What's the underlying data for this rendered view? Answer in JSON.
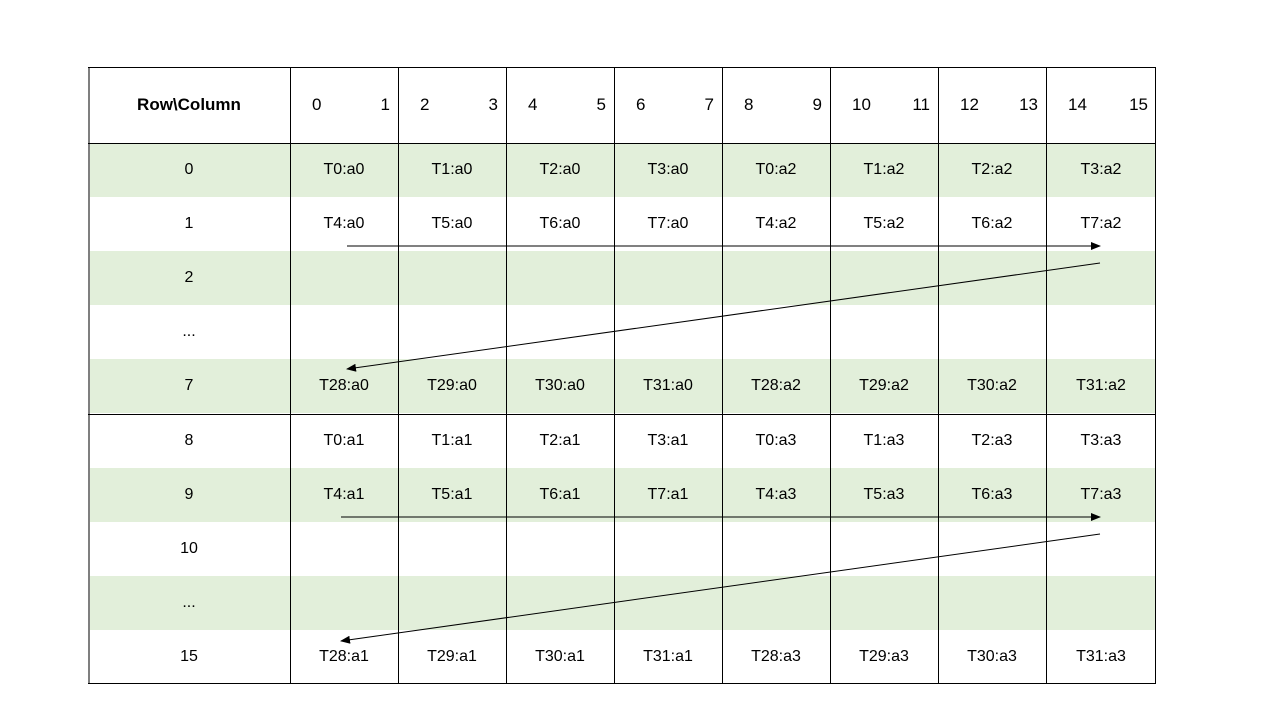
{
  "table": {
    "corner_label": "Row\\Column",
    "column_headers": [
      [
        "0",
        "1"
      ],
      [
        "2",
        "3"
      ],
      [
        "4",
        "5"
      ],
      [
        "6",
        "7"
      ],
      [
        "8",
        "9"
      ],
      [
        "10",
        "11"
      ],
      [
        "12",
        "13"
      ],
      [
        "14",
        "15"
      ]
    ],
    "rows": [
      {
        "label": "0",
        "shaded": true,
        "cells": [
          "T0:a0",
          "T1:a0",
          "T2:a0",
          "T3:a0",
          "T0:a2",
          "T1:a2",
          "T2:a2",
          "T3:a2"
        ]
      },
      {
        "label": "1",
        "shaded": false,
        "cells": [
          "T4:a0",
          "T5:a0",
          "T6:a0",
          "T7:a0",
          "T4:a2",
          "T5:a2",
          "T6:a2",
          "T7:a2"
        ]
      },
      {
        "label": "2",
        "shaded": true,
        "cells": [
          "",
          "",
          "",
          "",
          "",
          "",
          "",
          ""
        ]
      },
      {
        "label": "...",
        "shaded": false,
        "cells": [
          "",
          "",
          "",
          "",
          "",
          "",
          "",
          ""
        ]
      },
      {
        "label": "7",
        "shaded": true,
        "cells": [
          "T28:a0",
          "T29:a0",
          "T30:a0",
          "T31:a0",
          "T28:a2",
          "T29:a2",
          "T30:a2",
          "T31:a2"
        ]
      },
      {
        "label": "8",
        "shaded": false,
        "cells": [
          "T0:a1",
          "T1:a1",
          "T2:a1",
          "T3:a1",
          "T0:a3",
          "T1:a3",
          "T2:a3",
          "T3:a3"
        ]
      },
      {
        "label": "9",
        "shaded": true,
        "cells": [
          "T4:a1",
          "T5:a1",
          "T6:a1",
          "T7:a1",
          "T4:a3",
          "T5:a3",
          "T6:a3",
          "T7:a3"
        ]
      },
      {
        "label": "10",
        "shaded": false,
        "cells": [
          "",
          "",
          "",
          "",
          "",
          "",
          "",
          ""
        ]
      },
      {
        "label": "...",
        "shaded": true,
        "cells": [
          "",
          "",
          "",
          "",
          "",
          "",
          "",
          ""
        ]
      },
      {
        "label": "15",
        "shaded": false,
        "cells": [
          "T28:a1",
          "T29:a1",
          "T30:a1",
          "T31:a1",
          "T28:a3",
          "T29:a3",
          "T30:a3",
          "T31:a3"
        ]
      }
    ]
  },
  "colors": {
    "shade": "#e2efda",
    "line": "#000000"
  }
}
